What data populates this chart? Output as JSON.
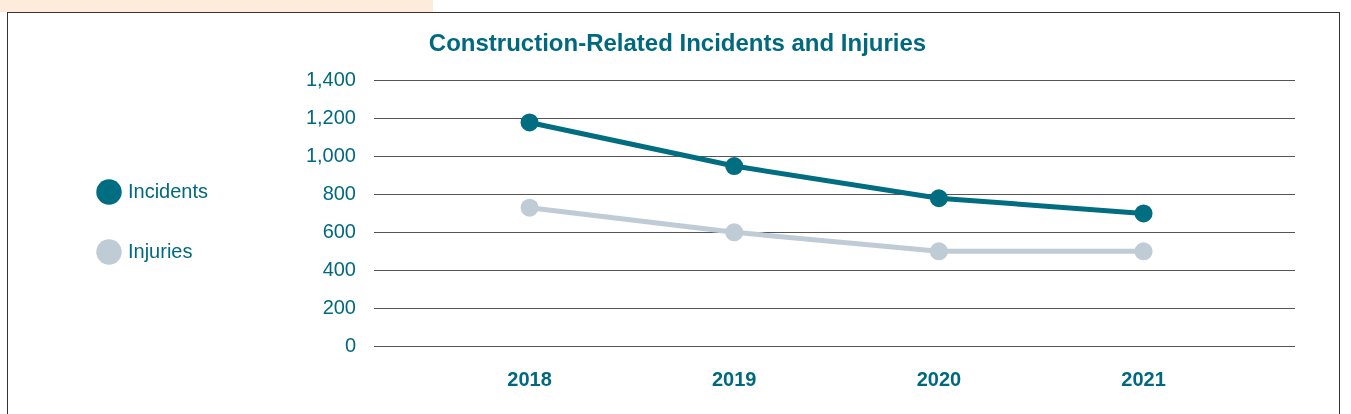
{
  "chart_data": {
    "type": "line",
    "title": "Construction-Related Incidents and Injuries",
    "categories": [
      "2018",
      "2019",
      "2020",
      "2021"
    ],
    "series": [
      {
        "name": "Incidents",
        "color": "#006d80",
        "values": [
          1180,
          950,
          780,
          700
        ]
      },
      {
        "name": "Injuries",
        "color": "#bfcbd5",
        "values": [
          730,
          600,
          500,
          500
        ]
      }
    ],
    "ylim": [
      0,
      1400
    ],
    "yticks": [
      0,
      200,
      400,
      600,
      800,
      {
        "value": 1000,
        "label": "1,000"
      },
      {
        "value": 1200,
        "label": "1,200"
      },
      {
        "value": 1400,
        "label": "1,400"
      }
    ],
    "grid": "y",
    "legend": "left",
    "marker": "circle",
    "line_style": "solid"
  }
}
